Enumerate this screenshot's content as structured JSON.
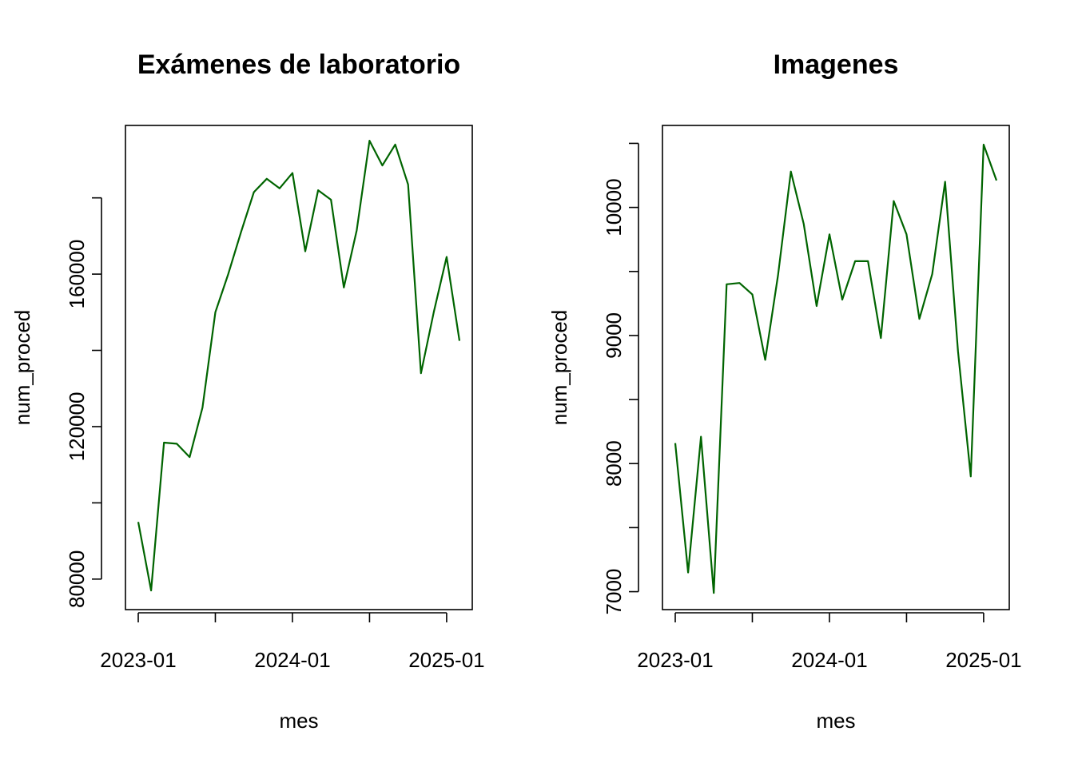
{
  "chart_data": [
    {
      "type": "line",
      "title": "Exámenes de laboratorio",
      "xlabel": "mes",
      "ylabel": "num_proced",
      "x": [
        "2023-01",
        "2023-02",
        "2023-03",
        "2023-04",
        "2023-05",
        "2023-06",
        "2023-07",
        "2023-08",
        "2023-09",
        "2023-10",
        "2023-11",
        "2023-12",
        "2024-01",
        "2024-02",
        "2024-03",
        "2024-04",
        "2024-05",
        "2024-06",
        "2024-07",
        "2024-08",
        "2024-09",
        "2024-10",
        "2024-11",
        "2024-12",
        "2025-01",
        "2025-02"
      ],
      "series": [
        {
          "values": [
            95000,
            77000,
            115800,
            115500,
            112000,
            125000,
            150000,
            160000,
            171000,
            181500,
            185000,
            182500,
            186500,
            166000,
            182000,
            179500,
            156500,
            171500,
            195000,
            188500,
            194000,
            183500,
            134000,
            150000,
            164500,
            142500
          ]
        }
      ],
      "xlim": [
        "2023-01",
        "2025-02"
      ],
      "ylim": [
        72000,
        199000
      ],
      "y_ticks": [
        80000,
        100000,
        120000,
        140000,
        160000,
        180000
      ],
      "y_tick_labels": [
        "80000",
        "",
        "120000",
        "",
        "160000",
        ""
      ],
      "x_ticks": [
        "2023-01",
        "2023-07",
        "2024-01",
        "2024-07",
        "2025-01"
      ],
      "x_tick_labels": [
        "2023-01",
        "",
        "2024-01",
        "",
        "2025-01"
      ],
      "color": "#006400",
      "grid": false
    },
    {
      "type": "line",
      "title": "Imagenes",
      "xlabel": "mes",
      "ylabel": "num_proced",
      "x": [
        "2023-01",
        "2023-02",
        "2023-03",
        "2023-04",
        "2023-05",
        "2023-06",
        "2023-07",
        "2023-08",
        "2023-09",
        "2023-10",
        "2023-11",
        "2023-12",
        "2024-01",
        "2024-02",
        "2024-03",
        "2024-04",
        "2024-05",
        "2024-06",
        "2024-07",
        "2024-08",
        "2024-09",
        "2024-10",
        "2024-11",
        "2024-12",
        "2025-01",
        "2025-02"
      ],
      "series": [
        {
          "values": [
            8160,
            7150,
            8210,
            6990,
            9400,
            9410,
            9320,
            8810,
            9470,
            10280,
            9870,
            9230,
            9790,
            9280,
            9580,
            9580,
            8980,
            10050,
            9790,
            9130,
            9480,
            10200,
            8880,
            7900,
            10490,
            10210
          ]
        }
      ],
      "xlim": [
        "2023-01",
        "2025-02"
      ],
      "ylim": [
        6860,
        10640
      ],
      "y_ticks": [
        7000,
        7500,
        8000,
        8500,
        9000,
        9500,
        10000,
        10500
      ],
      "y_tick_labels": [
        "7000",
        "",
        "8000",
        "",
        "9000",
        "",
        "10000",
        ""
      ],
      "x_ticks": [
        "2023-01",
        "2023-07",
        "2024-01",
        "2024-07",
        "2025-01"
      ],
      "x_tick_labels": [
        "2023-01",
        "",
        "2024-01",
        "",
        "2025-01"
      ],
      "color": "#006400",
      "grid": false
    }
  ]
}
